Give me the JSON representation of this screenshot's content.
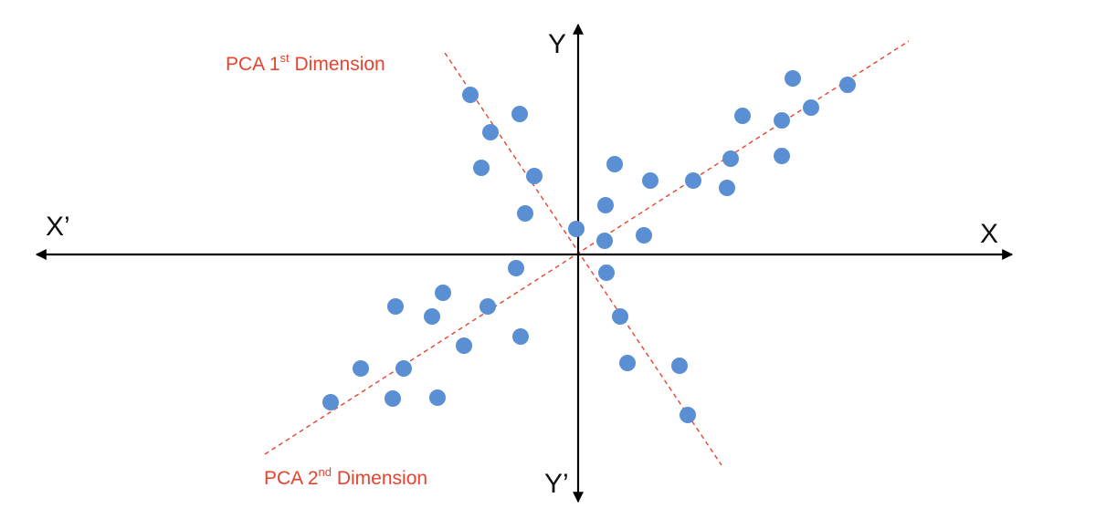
{
  "axes": {
    "x_pos_label": "X",
    "x_neg_label": "X’",
    "y_pos_label": "Y",
    "y_neg_label": "Y’",
    "color": "#000000"
  },
  "pca": {
    "color": "#e8432e",
    "first": {
      "pre": "PCA 1",
      "sup": "st",
      "post": " Dimension"
    },
    "second": {
      "pre": "PCA 2",
      "sup": "nd",
      "post": " Dimension"
    }
  },
  "points": {
    "color": "#5b8fd4",
    "values": [
      [
        -118,
        175
      ],
      [
        -64,
        154
      ],
      [
        -96,
        134
      ],
      [
        -106,
        95
      ],
      [
        -48,
        86
      ],
      [
        -58,
        45
      ],
      [
        -2,
        28
      ],
      [
        29,
        15
      ],
      [
        72,
        21
      ],
      [
        30,
        54
      ],
      [
        40,
        99
      ],
      [
        79,
        81
      ],
      [
        126,
        81
      ],
      [
        167,
        105
      ],
      [
        180,
        152
      ],
      [
        163,
        73
      ],
      [
        223,
        108
      ],
      [
        223,
        147
      ],
      [
        255,
        161
      ],
      [
        295,
        186
      ],
      [
        235,
        193
      ],
      [
        -68,
        -15
      ],
      [
        31,
        -20
      ],
      [
        -99,
        -57
      ],
      [
        -148,
        -42
      ],
      [
        -160,
        -68
      ],
      [
        -200,
        -57
      ],
      [
        -125,
        -100
      ],
      [
        -63,
        -90
      ],
      [
        -191,
        -125
      ],
      [
        -238,
        -125
      ],
      [
        -203,
        -158
      ],
      [
        -154,
        -157
      ],
      [
        -271,
        -162
      ],
      [
        46,
        -68
      ],
      [
        54,
        -119
      ],
      [
        111,
        -122
      ],
      [
        120,
        -176
      ]
    ]
  }
}
